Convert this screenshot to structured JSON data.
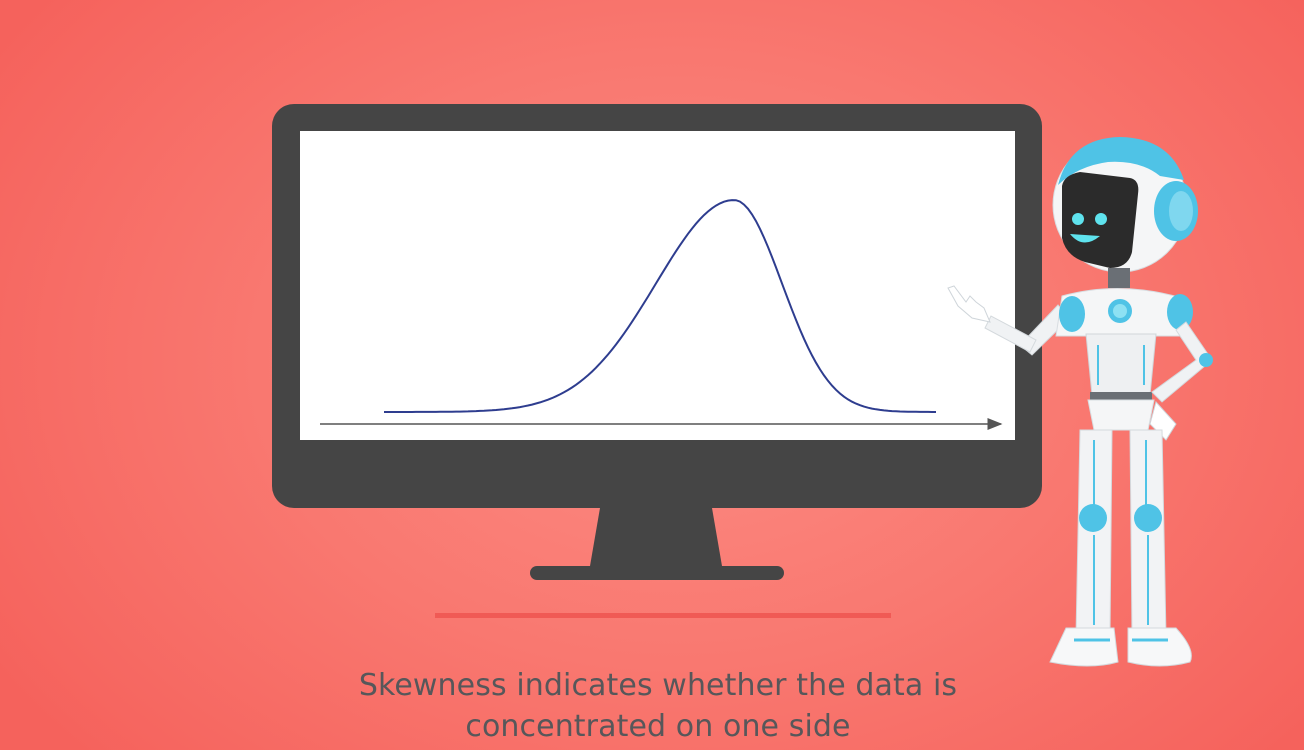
{
  "caption": {
    "line1": "Skewness indicates whether the data is",
    "line2": "concentrated on one side"
  },
  "subtitle": "",
  "colors": {
    "background": "#f97870",
    "monitor": "#454545",
    "screen": "#ffffff",
    "curve": "#2e3d8f",
    "divider": "#f05a55",
    "caption_text": "#57575a",
    "robot_accent": "#4fc3e6"
  },
  "icons": {
    "monitor": "monitor-icon",
    "robot": "robot-character"
  }
}
